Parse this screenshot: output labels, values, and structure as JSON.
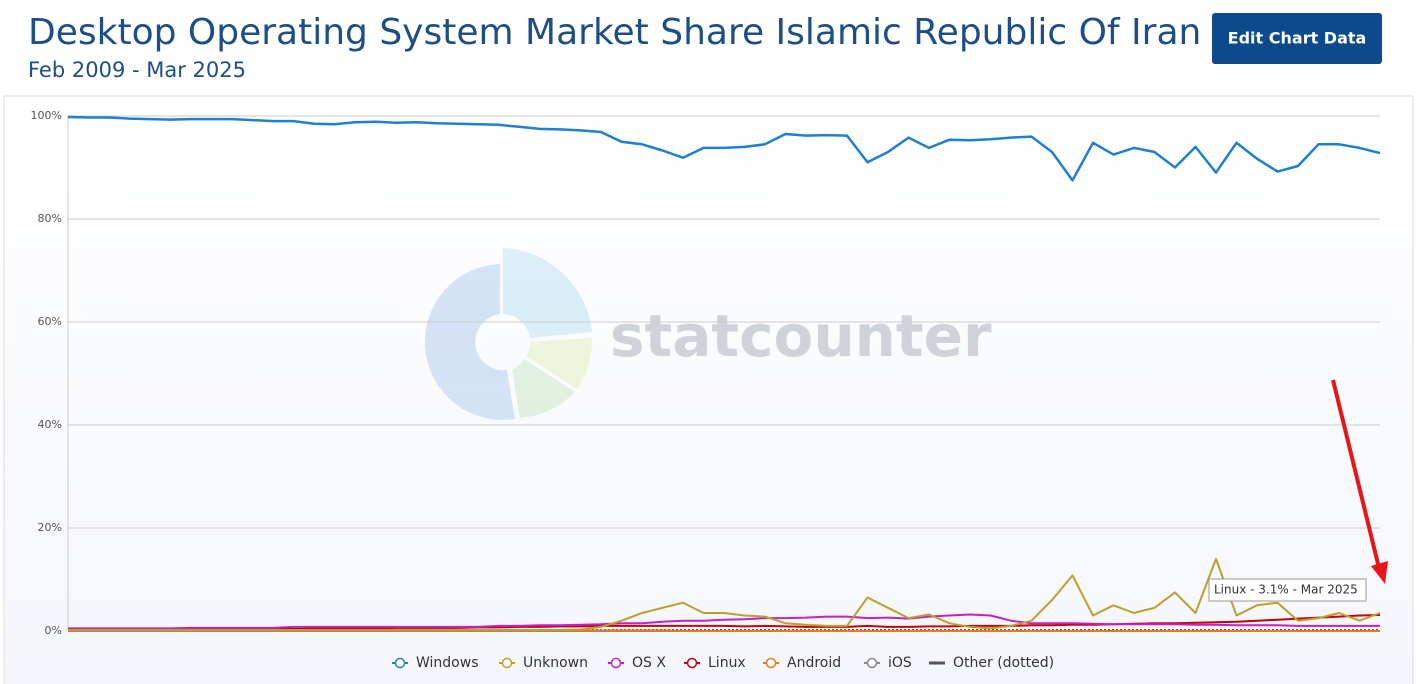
{
  "chart_data": {
    "type": "line",
    "title": "Desktop Operating System Market Share Islamic Republic Of Iran",
    "subtitle": "Feb 2009 - Mar 2025",
    "button": "Edit Chart Data",
    "watermark": "statcounter",
    "tooltip": "Linux - 3.1% - Mar 2025",
    "ylim": [
      0,
      100
    ],
    "yticks": [
      {
        "value": 0,
        "label": "0%"
      },
      {
        "value": 20,
        "label": "20%"
      },
      {
        "value": 40,
        "label": "40%"
      },
      {
        "value": 60,
        "label": "60%"
      },
      {
        "value": 80,
        "label": "80%"
      },
      {
        "value": 100,
        "label": "100%"
      }
    ],
    "grid": true,
    "series": [
      {
        "name": "Windows",
        "color": "#1f7fd1",
        "values": [
          99.8,
          99.7,
          99.7,
          99.5,
          99.4,
          99.3,
          99.4,
          99.4,
          99.4,
          99.2,
          99.0,
          99.0,
          98.5,
          98.4,
          98.8,
          98.9,
          98.7,
          98.8,
          98.6,
          98.5,
          98.4,
          98.3,
          97.9,
          97.5,
          97.4,
          97.2,
          96.9,
          95.0,
          94.5,
          93.3,
          91.9,
          93.8,
          93.8,
          94.0,
          94.5,
          96.5,
          96.2,
          96.3,
          96.2,
          91.0,
          93.0,
          95.8,
          93.8,
          95.4,
          95.3,
          95.5,
          95.8,
          96.0,
          93.0,
          87.5,
          94.8,
          92.5,
          93.8,
          93.0,
          90.0,
          94.0,
          89.0,
          94.8,
          91.7,
          89.2,
          90.3,
          94.5,
          94.5,
          93.8,
          92.8
        ]
      },
      {
        "name": "Unknown",
        "color": "#b9a12e",
        "values": [
          0.2,
          0.2,
          0.2,
          0.2,
          0.2,
          0.2,
          0.2,
          0.2,
          0.2,
          0.2,
          0.2,
          0.2,
          0.2,
          0.2,
          0.2,
          0.2,
          0.2,
          0.2,
          0.2,
          0.2,
          0.2,
          0.2,
          0.2,
          0.2,
          0.2,
          0.3,
          0.8,
          2.0,
          3.5,
          4.5,
          5.5,
          3.5,
          3.5,
          3.0,
          2.8,
          1.5,
          1.2,
          1.0,
          1.0,
          6.5,
          4.5,
          2.5,
          3.2,
          1.5,
          0.8,
          0.5,
          1.0,
          2.0,
          6.0,
          10.8,
          3.0,
          5.0,
          3.5,
          4.5,
          7.5,
          3.5,
          14.0,
          3.0,
          5.0,
          5.5,
          2.0,
          2.5,
          3.5,
          2.0,
          3.5
        ]
      },
      {
        "name": "OS X",
        "color": "#c321c6",
        "values": [
          0.5,
          0.5,
          0.5,
          0.5,
          0.5,
          0.5,
          0.6,
          0.6,
          0.6,
          0.6,
          0.6,
          0.8,
          0.8,
          0.8,
          0.8,
          0.8,
          0.8,
          0.8,
          0.8,
          0.8,
          0.8,
          1.0,
          1.0,
          1.1,
          1.1,
          1.2,
          1.3,
          1.5,
          1.5,
          1.8,
          2.0,
          2.0,
          2.2,
          2.3,
          2.5,
          2.5,
          2.6,
          2.8,
          2.8,
          2.5,
          2.6,
          2.4,
          2.8,
          3.0,
          3.2,
          3.0,
          2.0,
          1.5,
          1.5,
          1.5,
          1.4,
          1.3,
          1.3,
          1.3,
          1.3,
          1.2,
          1.2,
          1.1,
          1.1,
          1.1,
          1.0,
          1.0,
          1.0,
          1.0,
          1.0
        ]
      },
      {
        "name": "Linux",
        "color": "#c4000b",
        "values": [
          0.3,
          0.3,
          0.3,
          0.3,
          0.3,
          0.3,
          0.3,
          0.3,
          0.3,
          0.3,
          0.4,
          0.4,
          0.5,
          0.5,
          0.5,
          0.5,
          0.6,
          0.6,
          0.6,
          0.6,
          0.7,
          0.7,
          0.8,
          0.8,
          0.9,
          0.9,
          1.0,
          1.0,
          1.0,
          1.0,
          1.0,
          1.0,
          1.0,
          0.9,
          1.0,
          0.9,
          0.8,
          0.8,
          0.8,
          1.0,
          0.8,
          0.8,
          0.9,
          0.9,
          1.0,
          1.0,
          1.0,
          1.1,
          1.1,
          1.2,
          1.2,
          1.3,
          1.4,
          1.5,
          1.5,
          1.6,
          1.7,
          1.8,
          2.0,
          2.2,
          2.4,
          2.6,
          2.8,
          3.0,
          3.1
        ]
      },
      {
        "name": "Android",
        "color": "#e87a1a",
        "values": [
          0.1,
          0.1,
          0.1,
          0.1,
          0.1,
          0.1,
          0.1,
          0.1,
          0.1,
          0.1,
          0.1,
          0.1,
          0.1,
          0.1,
          0.1,
          0.1,
          0.1,
          0.1,
          0.1,
          0.1,
          0.1,
          0.1,
          0.1,
          0.1,
          0.1,
          0.1,
          0.1,
          0.1,
          0.1,
          0.1,
          0,
          0,
          0,
          0,
          0,
          0,
          0,
          0,
          0,
          0,
          0,
          0,
          0,
          0,
          0,
          0,
          0,
          0,
          0,
          0,
          0,
          0,
          0,
          0,
          0,
          0,
          0,
          0,
          0,
          0,
          0,
          0,
          0,
          0,
          0
        ]
      },
      {
        "name": "iOS",
        "color": "#888888",
        "values": [
          0,
          0,
          0,
          0,
          0,
          0,
          0,
          0,
          0,
          0,
          0,
          0,
          0,
          0,
          0,
          0,
          0,
          0,
          0,
          0,
          0,
          0,
          0,
          0,
          0,
          0,
          0,
          0,
          0,
          0,
          0,
          0,
          0,
          0,
          0,
          0,
          0,
          0,
          0,
          0,
          0,
          0,
          0,
          0,
          0,
          0,
          0,
          0,
          0,
          0,
          0,
          0,
          0,
          0,
          0,
          0,
          0,
          0,
          0,
          0,
          0,
          0,
          0,
          0,
          0
        ]
      },
      {
        "name": "Other (dotted)",
        "color": "#555555",
        "dotted": true,
        "values": [
          0.2,
          0.2,
          0.2,
          0.2,
          0.2,
          0.2,
          0.2,
          0.2,
          0.2,
          0.2,
          0.2,
          0.2,
          0.2,
          0.2,
          0.2,
          0.2,
          0.2,
          0.2,
          0.2,
          0.2,
          0.2,
          0.2,
          0.2,
          0.2,
          0.2,
          0.2,
          0.2,
          0.2,
          0.2,
          0.2,
          0.2,
          0.2,
          0.2,
          0.2,
          0.2,
          0.2,
          0.2,
          0.2,
          0.2,
          0.2,
          0.2,
          0.2,
          0.2,
          0.2,
          0.2,
          0.2,
          0.2,
          0.2,
          0.2,
          0.2,
          0.2,
          0.2,
          0.2,
          0.2,
          0.2,
          0.2,
          0.2,
          0.2,
          0.2,
          0.2,
          0.2,
          0.2,
          0.2,
          0.2,
          0.2
        ]
      }
    ]
  }
}
